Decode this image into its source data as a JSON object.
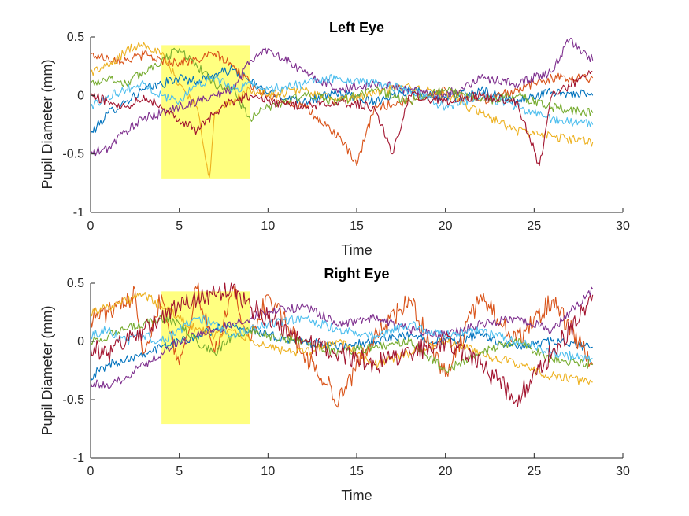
{
  "figure": {
    "subplots": [
      "left-eye",
      "right-eye"
    ]
  },
  "chart_data": [
    {
      "id": "left-eye",
      "type": "line",
      "title": "Left Eye",
      "xlabel": "Time",
      "ylabel": "Pupil Diameter (mm)",
      "xlim": [
        0,
        30
      ],
      "ylim": [
        -1,
        0.5
      ],
      "xticks": [
        0,
        5,
        10,
        15,
        20,
        25,
        30
      ],
      "yticks": [
        -1,
        -0.5,
        0,
        0.5
      ],
      "xtick_labels": [
        "0",
        "5",
        "10",
        "15",
        "20",
        "25",
        "30"
      ],
      "ytick_labels": [
        "-1",
        "-0.5",
        "0",
        "0.5"
      ],
      "grid": false,
      "highlight": {
        "x": [
          4,
          9
        ],
        "y": [
          -0.71,
          0.43
        ],
        "color": "#ffff80"
      },
      "series": [
        {
          "color": "#0072BD",
          "x": [
            0,
            1,
            2,
            3,
            4,
            5,
            6,
            7,
            8,
            9,
            10,
            12,
            14,
            16,
            18,
            20,
            22,
            24,
            26,
            28.3
          ],
          "y": [
            -0.33,
            -0.15,
            -0.05,
            0.05,
            0.1,
            0.15,
            0.12,
            0.18,
            0.22,
            0.12,
            0.02,
            -0.05,
            0.02,
            -0.05,
            0.05,
            -0.02,
            0.04,
            -0.05,
            0.03,
            0.0
          ]
        },
        {
          "color": "#D95319",
          "x": [
            0,
            1,
            2,
            3,
            4,
            5,
            6,
            7,
            8,
            9,
            10,
            12,
            14,
            15,
            16,
            18,
            20,
            22,
            24,
            26,
            28.3
          ],
          "y": [
            0.35,
            0.32,
            0.3,
            0.35,
            0.3,
            0.28,
            0.3,
            0.36,
            0.25,
            0.1,
            0.0,
            -0.1,
            -0.35,
            -0.6,
            -0.1,
            -0.05,
            0.05,
            -0.05,
            0.05,
            0.15,
            0.15
          ]
        },
        {
          "color": "#EDB120",
          "x": [
            0,
            1,
            2,
            3,
            4,
            5,
            6,
            6.7,
            7,
            8,
            9,
            10,
            12,
            14,
            16,
            18,
            20,
            22,
            24,
            26,
            28.3
          ],
          "y": [
            0.2,
            0.25,
            0.38,
            0.45,
            0.35,
            0.1,
            -0.1,
            -0.7,
            -0.15,
            -0.05,
            0.05,
            0.0,
            0.05,
            -0.05,
            0.02,
            0.08,
            0.0,
            -0.15,
            -0.3,
            -0.35,
            -0.4
          ]
        },
        {
          "color": "#7E2F8E",
          "x": [
            0,
            1,
            2,
            3,
            4,
            5,
            6,
            7,
            8,
            9,
            10,
            12,
            14,
            16,
            18,
            20,
            22,
            24,
            26,
            27,
            28.3
          ],
          "y": [
            -0.5,
            -0.45,
            -0.3,
            -0.2,
            -0.15,
            -0.1,
            -0.05,
            0.0,
            0.05,
            0.3,
            0.4,
            0.2,
            0.05,
            0.1,
            0.05,
            0.0,
            0.15,
            0.1,
            0.2,
            0.48,
            0.3
          ]
        },
        {
          "color": "#77AC30",
          "x": [
            0,
            1,
            2,
            3,
            4,
            5,
            6,
            7,
            8,
            9,
            10,
            12,
            14,
            16,
            18,
            20,
            22,
            24,
            26,
            28.3
          ],
          "y": [
            0.1,
            0.15,
            0.1,
            0.2,
            0.3,
            0.4,
            0.25,
            0.1,
            0.05,
            -0.2,
            -0.1,
            0.0,
            -0.05,
            0.05,
            -0.05,
            0.05,
            -0.05,
            0.0,
            -0.1,
            -0.15
          ]
        },
        {
          "color": "#4DBEEE",
          "x": [
            0,
            1,
            2,
            3,
            4,
            5,
            6,
            7,
            8,
            9,
            10,
            12,
            14,
            16,
            18,
            20,
            22,
            24,
            26,
            28.3
          ],
          "y": [
            -0.1,
            0.0,
            0.05,
            0.1,
            0.0,
            -0.05,
            0.1,
            0.15,
            0.05,
            0.1,
            0.05,
            0.1,
            0.15,
            0.1,
            0.05,
            -0.1,
            0.0,
            -0.1,
            -0.2,
            -0.25
          ]
        },
        {
          "color": "#A2142F",
          "x": [
            0,
            1,
            2,
            3,
            4,
            5,
            6,
            7,
            8,
            9,
            10,
            12,
            14,
            16,
            17,
            18,
            20,
            22,
            24,
            25.3,
            26,
            28.3
          ],
          "y": [
            0.0,
            -0.05,
            -0.1,
            0.0,
            -0.1,
            -0.2,
            -0.3,
            -0.15,
            -0.05,
            0.0,
            -0.05,
            -0.1,
            -0.05,
            -0.1,
            -0.5,
            0.0,
            -0.05,
            0.0,
            -0.05,
            -0.6,
            0.0,
            0.2
          ]
        }
      ]
    },
    {
      "id": "right-eye",
      "type": "line",
      "title": "Right Eye",
      "xlabel": "Time",
      "ylabel": "Pupil Diameter (mm)",
      "xlim": [
        0,
        30
      ],
      "ylim": [
        -1,
        0.5
      ],
      "xticks": [
        0,
        5,
        10,
        15,
        20,
        25,
        30
      ],
      "yticks": [
        -1,
        -0.5,
        0,
        0.5
      ],
      "xtick_labels": [
        "0",
        "5",
        "10",
        "15",
        "20",
        "25",
        "30"
      ],
      "ytick_labels": [
        "-1",
        "-0.5",
        "0",
        "0.5"
      ],
      "grid": false,
      "highlight": {
        "x": [
          4,
          9
        ],
        "y": [
          -0.71,
          0.43
        ],
        "color": "#ffff80"
      },
      "series": [
        {
          "color": "#0072BD",
          "x": [
            0,
            1,
            2,
            3,
            4,
            5,
            6,
            7,
            8,
            9,
            10,
            12,
            14,
            16,
            18,
            20,
            22,
            24,
            26,
            28.3
          ],
          "y": [
            -0.3,
            -0.2,
            -0.15,
            -0.1,
            -0.05,
            0.0,
            0.05,
            0.1,
            0.15,
            0.1,
            0.05,
            0.0,
            -0.05,
            0.0,
            0.05,
            0.0,
            0.05,
            -0.05,
            0.0,
            -0.05
          ]
        },
        {
          "color": "#D95319",
          "x": [
            0,
            1,
            2,
            2.5,
            3,
            4,
            5,
            6,
            7,
            8,
            9,
            10,
            12,
            14,
            16,
            18,
            20,
            22,
            24,
            26,
            28.3
          ],
          "y": [
            0.2,
            0.25,
            0.3,
            0.45,
            -0.1,
            0.4,
            -0.2,
            0.45,
            -0.1,
            0.45,
            0.0,
            0.4,
            -0.1,
            -0.5,
            0.05,
            0.35,
            -0.3,
            0.4,
            0.0,
            0.35,
            -0.2
          ]
        },
        {
          "color": "#EDB120",
          "x": [
            0,
            1,
            2,
            3,
            4,
            5,
            6,
            7,
            8,
            9,
            10,
            12,
            14,
            16,
            18,
            20,
            22,
            24,
            26,
            28.3
          ],
          "y": [
            0.25,
            0.3,
            0.35,
            0.4,
            0.3,
            0.2,
            0.1,
            0.05,
            0.1,
            0.0,
            -0.05,
            -0.1,
            0.0,
            -0.2,
            -0.1,
            0.0,
            -0.1,
            -0.2,
            -0.3,
            -0.35
          ]
        },
        {
          "color": "#7E2F8E",
          "x": [
            0,
            1,
            2,
            3,
            4,
            5,
            6,
            7,
            8,
            9,
            10,
            12,
            14,
            16,
            18,
            20,
            22,
            24,
            26,
            27,
            28.3
          ],
          "y": [
            -0.35,
            -0.4,
            -0.3,
            -0.2,
            -0.1,
            0.0,
            0.05,
            0.1,
            0.15,
            0.2,
            0.25,
            0.3,
            0.15,
            0.2,
            0.1,
            0.05,
            0.15,
            0.2,
            0.1,
            0.25,
            0.45
          ]
        },
        {
          "color": "#77AC30",
          "x": [
            0,
            1,
            2,
            3,
            4,
            5,
            6,
            7,
            8,
            9,
            10,
            12,
            14,
            16,
            18,
            20,
            22,
            24,
            26,
            28.3
          ],
          "y": [
            0.0,
            0.05,
            0.1,
            0.15,
            0.2,
            0.15,
            0.0,
            -0.1,
            0.05,
            0.1,
            0.05,
            0.0,
            -0.1,
            -0.05,
            0.0,
            -0.25,
            -0.1,
            0.0,
            -0.15,
            -0.2
          ]
        },
        {
          "color": "#4DBEEE",
          "x": [
            0,
            1,
            2,
            3,
            4,
            5,
            6,
            7,
            8,
            9,
            10,
            12,
            14,
            16,
            18,
            20,
            22,
            24,
            26,
            28.3
          ],
          "y": [
            0.05,
            0.1,
            0.0,
            0.05,
            0.0,
            0.1,
            0.2,
            0.15,
            0.05,
            0.1,
            0.15,
            0.2,
            0.1,
            0.05,
            0.15,
            0.05,
            0.1,
            0.0,
            -0.1,
            -0.15
          ]
        },
        {
          "color": "#A2142F",
          "x": [
            0,
            1,
            2,
            3,
            4,
            5,
            6,
            7,
            8,
            9,
            10,
            12,
            14,
            16,
            18,
            20,
            22,
            24,
            26,
            27,
            28.3
          ],
          "y": [
            -0.05,
            -0.1,
            0.0,
            0.1,
            0.2,
            0.3,
            0.35,
            0.4,
            0.45,
            0.3,
            0.2,
            0.0,
            -0.1,
            -0.2,
            -0.1,
            0.0,
            -0.2,
            -0.5,
            -0.1,
            0.1,
            0.4
          ]
        }
      ]
    }
  ]
}
